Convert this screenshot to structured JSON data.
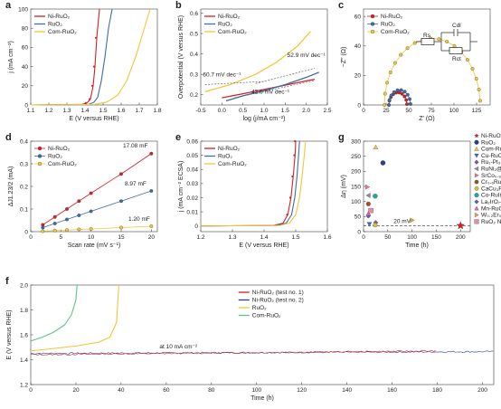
{
  "colors": {
    "ni": "#d42027",
    "ru": "#3a6ea5",
    "com": "#f3c43a",
    "green": "#5cc38a",
    "navy": "#2b3f8f"
  },
  "chart_data": [
    {
      "id": "a",
      "panel": "a",
      "type": "line",
      "xlabel": "E (V versus RHE)",
      "ylabel": "j (mA cm⁻²)",
      "xlim": [
        1.1,
        1.8
      ],
      "ylim": [
        0,
        100
      ],
      "xticks": [
        "1.1",
        "1.2",
        "1.3",
        "1.4",
        "1.5",
        "1.6",
        "1.7",
        "1.8"
      ],
      "yticks": [
        "0",
        "20",
        "40",
        "60",
        "80",
        "100"
      ],
      "legend_position": "top-left",
      "series": [
        {
          "name": "Ni-RuO₂",
          "color_key": "ni",
          "x": [
            1.1,
            1.38,
            1.41,
            1.43,
            1.445,
            1.455,
            1.465,
            1.48
          ],
          "y": [
            0,
            0.5,
            2,
            6,
            20,
            40,
            70,
            100
          ]
        },
        {
          "name": "RuO₂",
          "color_key": "ru",
          "x": [
            1.1,
            1.42,
            1.45,
            1.47,
            1.49,
            1.51,
            1.53,
            1.55
          ],
          "y": [
            0,
            0.5,
            3,
            8,
            25,
            50,
            80,
            100
          ]
        },
        {
          "name": "Com-RuO₂",
          "color_key": "com",
          "x": [
            1.1,
            1.45,
            1.52,
            1.58,
            1.63,
            1.68,
            1.72,
            1.76
          ],
          "y": [
            0,
            0.5,
            3,
            10,
            25,
            50,
            75,
            100
          ]
        }
      ]
    },
    {
      "id": "b",
      "panel": "b",
      "type": "line",
      "xlabel": "log (j/mA cm⁻²)",
      "ylabel": "Overpotential (V versus RHE)",
      "xlim": [
        -0.5,
        2.5
      ],
      "ylim": [
        0.15,
        0.62
      ],
      "xticks": [
        "-0.5",
        "0.0",
        "0.5",
        "1.0",
        "1.5",
        "2.0",
        "2.5"
      ],
      "yticks": [
        "0.2",
        "0.3",
        "0.4",
        "0.5",
        "0.6"
      ],
      "legend_position": "top-left",
      "annotations": [
        "52.9 mV dec⁻¹",
        "60.7 mV dec⁻¹",
        "42.6 mV dec⁻¹"
      ],
      "series": [
        {
          "name": "Ni-RuO₂",
          "color_key": "ni",
          "x": [
            0.0,
            0.5,
            1.0,
            1.5,
            2.0,
            2.2
          ],
          "y": [
            0.185,
            0.205,
            0.226,
            0.247,
            0.268,
            0.276
          ]
        },
        {
          "name": "RuO₂",
          "color_key": "ru",
          "x": [
            0.1,
            0.5,
            1.0,
            1.5,
            2.0,
            2.3
          ],
          "y": [
            0.17,
            0.195,
            0.22,
            0.25,
            0.285,
            0.31
          ]
        },
        {
          "name": "Com-RuO₂",
          "color_key": "com",
          "x": [
            -0.4,
            0.2,
            0.8,
            1.3,
            1.8,
            2.1
          ],
          "y": [
            0.215,
            0.25,
            0.3,
            0.36,
            0.44,
            0.51
          ]
        }
      ]
    },
    {
      "id": "c",
      "panel": "c",
      "type": "scatter",
      "xlabel": "Z′ (Ω)",
      "ylabel": "−Z″ (Ω)",
      "xlim": [
        0,
        140
      ],
      "ylim": [
        0,
        65
      ],
      "xticks": [
        "0",
        "25",
        "50",
        "75",
        "100",
        "125"
      ],
      "yticks": [
        "0",
        "20",
        "40",
        "60"
      ],
      "legend_position": "top-left",
      "circuit_labels": [
        "Rs",
        "Cdl",
        "Rct"
      ],
      "series": [
        {
          "name": "Ni-RuO₂",
          "color_key": "ni",
          "center": 38,
          "radius": 10
        },
        {
          "name": "RuO₂",
          "color_key": "ru",
          "center": 40,
          "radius": 12
        },
        {
          "name": "Com-RuO₂",
          "color_key": "com",
          "center": 76,
          "radius": 53
        }
      ]
    },
    {
      "id": "d",
      "panel": "d",
      "type": "scatter",
      "xlabel": "Scan rate (mV s⁻¹)",
      "ylabel": "ΔJ1.23/2 (mA)",
      "xlim": [
        0,
        21
      ],
      "ylim": [
        0,
        0.4
      ],
      "xticks": [
        "0",
        "5",
        "10",
        "15",
        "20"
      ],
      "yticks": [
        "0",
        "0.1",
        "0.2",
        "0.3",
        "0.4"
      ],
      "legend_position": "top-left",
      "annotations": [
        "17.08 mF",
        "8.97 mF",
        "1.20 mF"
      ],
      "series": [
        {
          "name": "Ni-RuO₂",
          "color_key": "ni",
          "x": [
            2,
            4,
            6,
            8,
            10,
            15,
            20
          ],
          "y": [
            0.03,
            0.065,
            0.1,
            0.135,
            0.17,
            0.255,
            0.345
          ]
        },
        {
          "name": "RuO₂",
          "color_key": "ru",
          "x": [
            2,
            4,
            6,
            8,
            10,
            15,
            20
          ],
          "y": [
            0.018,
            0.036,
            0.054,
            0.072,
            0.09,
            0.135,
            0.18
          ]
        },
        {
          "name": "Com-RuO₂",
          "color_key": "com",
          "x": [
            2,
            4,
            6,
            8,
            10,
            15,
            20
          ],
          "y": [
            0.002,
            0.005,
            0.007,
            0.01,
            0.012,
            0.018,
            0.024
          ]
        }
      ]
    },
    {
      "id": "e",
      "panel": "e",
      "type": "line",
      "xlabel": "E (V versus RHE)",
      "ylabel": "j (mA cm⁻² ECSA)",
      "xlim": [
        1.2,
        1.6
      ],
      "ylim": [
        -0.004,
        0.06
      ],
      "xticks": [
        "1.2",
        "1.3",
        "1.4",
        "1.5",
        "1.6"
      ],
      "yticks": [
        "0",
        "0.01",
        "0.02",
        "0.03",
        "0.04",
        "0.05",
        "0.06"
      ],
      "legend_position": "top-left",
      "series": [
        {
          "name": "Ni-RuO₂",
          "color_key": "ni",
          "x": [
            1.2,
            1.43,
            1.46,
            1.475,
            1.485,
            1.492,
            1.498,
            1.5
          ],
          "y": [
            0,
            0.0004,
            0.002,
            0.008,
            0.02,
            0.035,
            0.05,
            0.06
          ]
        },
        {
          "name": "RuO₂",
          "color_key": "ru",
          "x": [
            1.2,
            1.44,
            1.47,
            1.487,
            1.497,
            1.504,
            1.509,
            1.512
          ],
          "y": [
            0,
            0.0004,
            0.002,
            0.008,
            0.02,
            0.035,
            0.05,
            0.06
          ]
        },
        {
          "name": "Com-RuO₂",
          "color_key": "com",
          "x": [
            1.2,
            1.45,
            1.48,
            1.5,
            1.512,
            1.52,
            1.527,
            1.531
          ],
          "y": [
            0,
            0.0004,
            0.002,
            0.008,
            0.02,
            0.035,
            0.05,
            0.06
          ]
        }
      ]
    },
    {
      "id": "g",
      "panel": "g",
      "type": "scatter",
      "xlabel": "Time (h)",
      "ylabel": "Δη (mV)",
      "xlim": [
        0,
        220
      ],
      "ylim": [
        0,
        300
      ],
      "xticks": [
        "0",
        "50",
        "100",
        "150",
        "200"
      ],
      "yticks": [
        "0",
        "50",
        "100",
        "150",
        "200",
        "250",
        "300"
      ],
      "legend_position": "right",
      "annotations": [
        "20 mV"
      ],
      "series": [
        {
          "name": "Ni-RuO₂",
          "color": "#d42027",
          "marker": "star",
          "x": 200,
          "y": 20
        },
        {
          "name": "RuO₂",
          "color": "#2b3f8f",
          "marker": "circle",
          "x": 40,
          "y": 228
        },
        {
          "name": "Com-RuO₂",
          "color": "#f3c43a",
          "marker": "triangle",
          "x": 25,
          "y": 280
        },
        {
          "name": "Cu-RuO₂",
          "color": "#3b6ab5",
          "marker": "triangle-down",
          "x": 12,
          "y": 25
        },
        {
          "name": "Ru₁-Pt₃Cu",
          "color": "#8a4fb5",
          "marker": "diamond",
          "x": 25,
          "y": 30
        },
        {
          "name": "RuNi₂@G-250",
          "color": "#8c8c8c",
          "marker": "triangle-left",
          "x": 10,
          "y": 120
        },
        {
          "name": "SrCo₀.₉Ir₀.₁O₃₋δ",
          "color": "#e07a9a",
          "marker": "triangle-right",
          "x": 8,
          "y": 148
        },
        {
          "name": "Cr₀.₆Ru₀.₄O₂",
          "color": "#a04f1e",
          "marker": "hexagon",
          "x": 10,
          "y": 92
        },
        {
          "name": "CaCu₃Ru₄O₁₂",
          "color": "#d4c22a",
          "marker": "hexagon",
          "x": 24,
          "y": 22
        },
        {
          "name": "Co-RuIr",
          "color": "#25a89a",
          "marker": "circle",
          "x": 24,
          "y": 118
        },
        {
          "name": "La₂IrO₇-SLD",
          "color": "#5566aa",
          "marker": "diamond",
          "x": 10,
          "y": 52
        },
        {
          "name": "Mn-RuO₂",
          "color": "#d66bb5",
          "marker": "triangle",
          "x": 10,
          "y": 60
        },
        {
          "name": "W₀.₂Er₀.₁Ru₀.₇O₂₋δ",
          "color": "#e2a23a",
          "marker": "triangle-right",
          "x": 100,
          "y": 38
        },
        {
          "name": "RuO₂ NSs",
          "color": "#e98aa8",
          "marker": "square",
          "x": 15,
          "y": 70
        }
      ]
    },
    {
      "id": "f",
      "panel": "f",
      "type": "line",
      "xlabel": "Time (h)",
      "ylabel": "E (V versus RHE)",
      "xlim": [
        0,
        205
      ],
      "ylim": [
        1.2,
        2.0
      ],
      "xticks": [
        "0",
        "20",
        "40",
        "60",
        "80",
        "100",
        "120",
        "140",
        "160",
        "180",
        "200"
      ],
      "yticks": [
        "1.2",
        "1.4",
        "1.6",
        "1.8",
        "2.0"
      ],
      "legend_position": "top-center",
      "annotations": [
        "at 10 mA cm⁻²"
      ],
      "series": [
        {
          "name": "Ni-RuO₂ (test no. 1)",
          "color_key": "ni",
          "x": [
            0,
            180
          ],
          "y": [
            1.44,
            1.47
          ]
        },
        {
          "name": "Ni-RuO₂ (test no. 2)",
          "color_key": "navy",
          "x": [
            0,
            205
          ],
          "y": [
            1.45,
            1.465
          ]
        },
        {
          "name": "RuO₂",
          "color_key": "com",
          "x": [
            0,
            10,
            20,
            30,
            35,
            38,
            39
          ],
          "y": [
            1.47,
            1.49,
            1.51,
            1.54,
            1.58,
            1.7,
            2.0
          ]
        },
        {
          "name": "Com-RuO₂",
          "color_key": "green",
          "x": [
            0,
            5,
            10,
            15,
            18,
            20,
            20.5
          ],
          "y": [
            1.55,
            1.58,
            1.62,
            1.68,
            1.76,
            1.88,
            2.0
          ]
        }
      ]
    }
  ]
}
